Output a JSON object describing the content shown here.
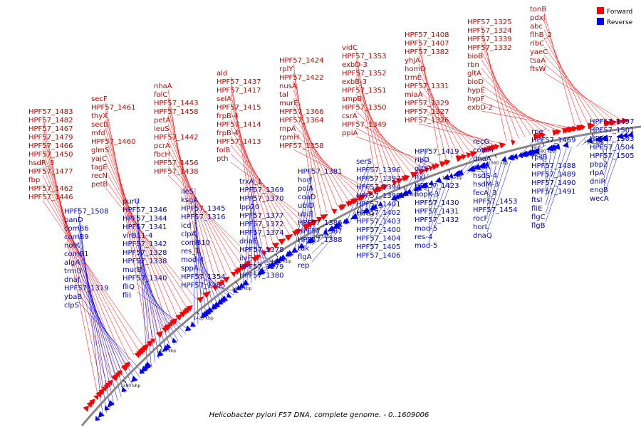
{
  "caption": "Helicobacter pylori F57 DNA, complete genome. - 0..1609006",
  "legend": {
    "forward": "Forward",
    "reverse": "Reverse"
  },
  "colors": {
    "forward": "#ff0000",
    "reverse": "#0000ff",
    "forward_text": "#cc0000",
    "reverse_text": "#0000cc",
    "backbone": "#888888"
  },
  "ticks": [
    "1380 kbp",
    "1400 kbp",
    "1420 kbp",
    "1440 kbp",
    "1460 kbp",
    "1480 kbp",
    "1500 kbp",
    "1520 kbp",
    "1540 kbp",
    "1560 kbp",
    "1580 kbp",
    "1600 kbp"
  ],
  "forward_labels": [
    "HPF57_1483",
    "HPF57_1482",
    "HPF57_1467",
    "HPF57_1479",
    "HPF57_1466",
    "HPF57_1450",
    "hsdR_3",
    "HPF57_1477",
    "fbp",
    "HPF57_1462",
    "HPF57_1446",
    "secF",
    "HPF57_1461",
    "thyX",
    "secD",
    "mfd",
    "HPF57_1460",
    "glmS",
    "yajC",
    "tagE",
    "recN",
    "petB",
    "nhaA",
    "folC",
    "HPF57_1443",
    "HPF57_1458",
    "petA",
    "leuS",
    "HPF57_1442",
    "pcrA",
    "fbcH",
    "HPF57_1456",
    "HPF57_1438",
    "ald",
    "HPF57_1437",
    "HPF57_1417",
    "selA",
    "HPF57_1415",
    "frpB-4",
    "HPF57_1414",
    "frpB-4",
    "HPF57_1413",
    "folB",
    "pth",
    "HPF57_1424",
    "rplY",
    "HPF57_1422",
    "nusA",
    "tal",
    "murE",
    "HPF57_1366",
    "HPF57_1364",
    "rnpA",
    "rpmH",
    "HPF57_1358",
    "vidC",
    "HPF57_1353",
    "exbD-3",
    "HPF57_1352",
    "exbB-3",
    "HPF57_1351",
    "smpB",
    "HPF57_1350",
    "csrA",
    "HPF57_1349",
    "ppiA",
    "HPF57_1408",
    "HPF57_1407",
    "HPF57_1382",
    "yhjA",
    "homD",
    "trmE",
    "HPF57_1331",
    "miaA",
    "HPF57_1329",
    "HPF57_1327",
    "HPF57_1326",
    "HPF57_1325",
    "HPF57_1324",
    "HPF57_1339",
    "HPF57_1332",
    "bioB",
    "rbn",
    "gltA",
    "bioD",
    "hypE",
    "hypF",
    "exbD-2",
    "tonB",
    "pdxJ",
    "abc",
    "flhB_2",
    "ribC",
    "yaeC",
    "tsaA",
    "ftsW"
  ],
  "reverse_labels": [
    "HPF57_1508",
    "panD",
    "comB6",
    "comB9",
    "nolK",
    "comB1",
    "algA",
    "trmU",
    "dnaJ",
    "HPF57_1319",
    "ybaB",
    "clpS",
    "purU",
    "HPF57_1346",
    "HPF57_1344",
    "HPF57_1341",
    "virB11-4",
    "HPF57_1342",
    "HPF57_1328",
    "HPF57_1338",
    "murB",
    "HPF57_1340",
    "fliQ",
    "fliI",
    "ileS",
    "ksgA",
    "HPF57_1345",
    "HPF57_1316",
    "icd",
    "clpA",
    "comB10",
    "res_1",
    "mod-4",
    "sppA",
    "HPF57_1354",
    "HPF57_1355",
    "trxA_1",
    "HPF57_1369",
    "HPF57_1370",
    "lpp20",
    "HPF57_1377",
    "HPF57_1372",
    "HPF57_1374",
    "dnaE",
    "HPF57_1378",
    "ilvE",
    "HPF57_1379",
    "HPF57_1380",
    "HPF57_1381",
    "horJ",
    "polA",
    "coaD",
    "ubiD",
    "ubiE",
    "HPF57_1386",
    "HPF57_1387",
    "HPF57_1388",
    "tdk",
    "flgA",
    "rep",
    "serS",
    "HPF57_1396",
    "HPF57_1397",
    "HPF57_1394",
    "HPF57_1399",
    "HPF57_1401",
    "HPF57_1402",
    "HPF57_1403",
    "HPF57_1400",
    "HPF57_1404",
    "HPF57_1405",
    "HPF57_1406",
    "HPF57_1419",
    "ribD",
    "gltS",
    "fixI",
    "HPF57_1423",
    "hopK-3",
    "HPF57_1430",
    "HPF57_1431",
    "HPF57_1432",
    "mod-5",
    "res-4",
    "mod-5",
    "recG",
    "comH",
    "dnaA",
    "exoA",
    "hsdS-4",
    "hsdM-3",
    "fecA_3",
    "HPF57_1453",
    "HPF57_1454",
    "rocF",
    "horL",
    "dnaQ",
    "rpe",
    "HPF57_1469",
    "tsf",
    "rpsB",
    "HPF57_1488",
    "HPF57_1489",
    "HPF57_1490",
    "HPF57_1491",
    "ftsI",
    "fliE",
    "flgC",
    "flgB",
    "HPF57_1497",
    "HPF57_1501",
    "HPF57_1503",
    "HPF57_1504",
    "HPF57_1505",
    "pbp2",
    "rlpA",
    "dniR",
    "engB",
    "wecA"
  ]
}
